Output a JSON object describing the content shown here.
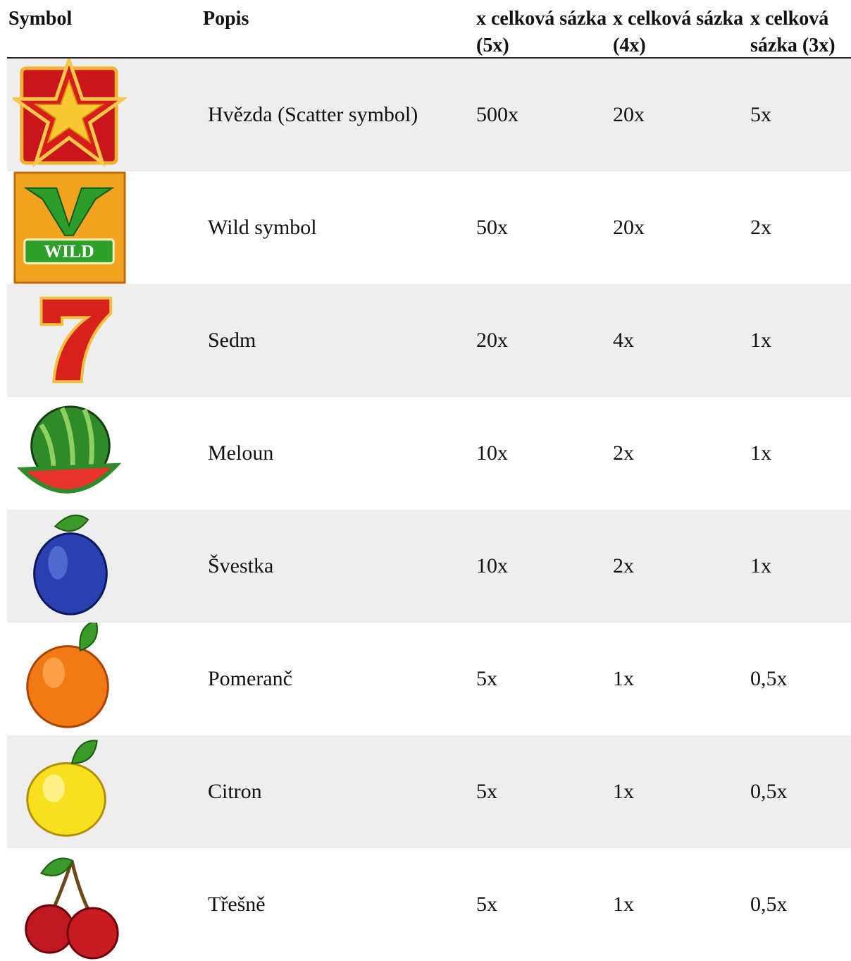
{
  "table": {
    "header": [
      "Symbol",
      "Popis",
      "x celková sázka (5x)",
      "x celková sázka (4x)",
      "x celková sázka (3x)"
    ],
    "rows": [
      {
        "description": "Hvězda (Scatter symbol)",
        "x5": "500x",
        "x4": "20x",
        "x3": "5x"
      },
      {
        "icon_text": "WILD",
        "description": "Wild symbol",
        "x5": "50x",
        "x4": "20x",
        "x3": "2x"
      },
      {
        "description": "Sedm",
        "x5": "20x",
        "x4": "4x",
        "x3": "1x"
      },
      {
        "description": "Meloun",
        "x5": "10x",
        "x4": "2x",
        "x3": "1x"
      },
      {
        "description": "Švestka",
        "x5": "10x",
        "x4": "2x",
        "x3": "1x"
      },
      {
        "description": "Pomeranč",
        "x5": "5x",
        "x4": "1x",
        "x3": "0,5x"
      },
      {
        "description": "Citron",
        "x5": "5x",
        "x4": "1x",
        "x3": "0,5x"
      },
      {
        "description": "Třešně",
        "x5": "5x",
        "x4": "1x",
        "x3": "0,5x"
      }
    ]
  }
}
